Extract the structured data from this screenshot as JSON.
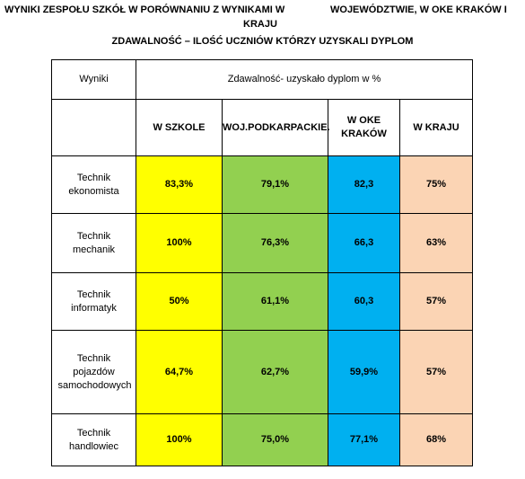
{
  "header": {
    "title_line1_part1": "WYNIKI ZESPOŁU SZKÓŁ  W PORÓWNANIU Z WYNIKAMI W",
    "title_line1_part2": "WOJEWÓDZTWIE, W OKE KRAKÓW I",
    "title_line2": "KRAJU",
    "subtitle": "ZDAWALNOŚĆ – ILOŚĆ UCZNIÓW KTÓRZY UZYSKALI DYPLOM"
  },
  "table": {
    "top_left_header": "Wyniki",
    "group_header": "Zdawalność- uzyskało dyplom w %",
    "columns": [
      "W SZKOLE",
      "WOJ.PODKARPACKIE.",
      "W OKE KRAKÓW",
      "W KRAJU"
    ],
    "rows": [
      {
        "name": "Technik ekonomista",
        "values": [
          "83,3%",
          "79,1%",
          "82,3",
          "75%"
        ]
      },
      {
        "name": "Technik mechanik",
        "values": [
          "100%",
          "76,3%",
          "66,3",
          "63%"
        ]
      },
      {
        "name": "Technik informatyk",
        "values": [
          "50%",
          "61,1%",
          "60,3",
          "57%"
        ]
      },
      {
        "name": "Technik pojazdów samochodowych",
        "values": [
          "64,7%",
          "62,7%",
          "59,9%",
          "57%"
        ]
      },
      {
        "name": "Technik handlowiec",
        "values": [
          "100%",
          "75,0%",
          "77,1%",
          "68%"
        ]
      }
    ]
  },
  "colors": {
    "school": "#ffff00",
    "province": "#92d050",
    "oke": "#00b0f0",
    "country": "#fbd4b4"
  }
}
